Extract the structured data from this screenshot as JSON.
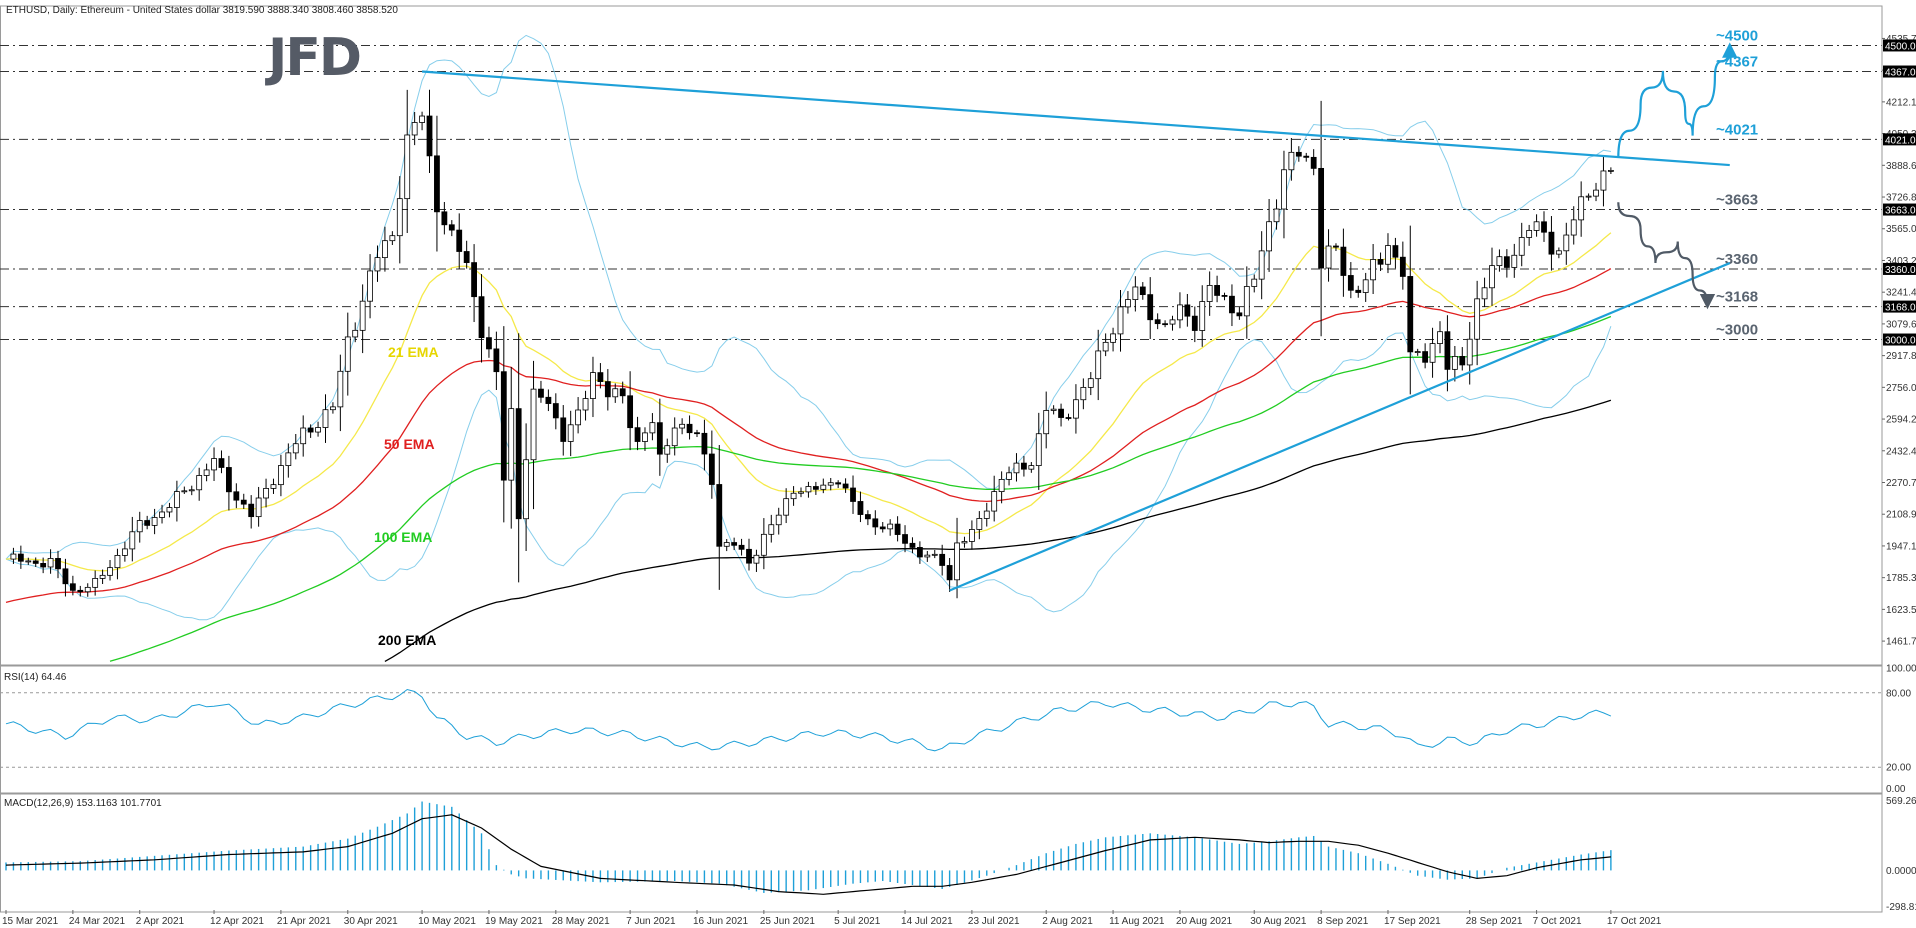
{
  "chart_data": {
    "type": "candlestick",
    "header": "ETHUSD, Daily:  Ethereum - United States dollar  3819.590 3888.340 3808.460 3858.520",
    "logo": "JFD",
    "y_axis": {
      "range": [
        1350,
        4640
      ],
      "tick_labels": [
        "4535.760",
        "4373.970",
        "4212.180",
        "4050.390",
        "3888.600",
        "3726.810",
        "3565.020",
        "3403.230",
        "3241.440",
        "3079.650",
        "2917.860",
        "2756.070",
        "2594.280",
        "2432.490",
        "2270.700",
        "2108.910",
        "1947.120",
        "1785.330",
        "1623.540",
        "1461.750"
      ]
    },
    "x_axis_labels": [
      {
        "label": "15 Mar 2021",
        "i": 0
      },
      {
        "label": "24 Mar 2021",
        "i": 9
      },
      {
        "label": "2 Apr 2021",
        "i": 18
      },
      {
        "label": "12 Apr 2021",
        "i": 28
      },
      {
        "label": "21 Apr 2021",
        "i": 37
      },
      {
        "label": "30 Apr 2021",
        "i": 46
      },
      {
        "label": "10 May 2021",
        "i": 56
      },
      {
        "label": "19 May 2021",
        "i": 65
      },
      {
        "label": "28 May 2021",
        "i": 74
      },
      {
        "label": "7 Jun 2021",
        "i": 84
      },
      {
        "label": "16 Jun 2021",
        "i": 93
      },
      {
        "label": "25 Jun 2021",
        "i": 102
      },
      {
        "label": "5 Jul 2021",
        "i": 112
      },
      {
        "label": "14 Jul 2021",
        "i": 121
      },
      {
        "label": "23 Jul 2021",
        "i": 130
      },
      {
        "label": "2 Aug 2021",
        "i": 140
      },
      {
        "label": "11 Aug 2021",
        "i": 149
      },
      {
        "label": "20 Aug 2021",
        "i": 158
      },
      {
        "label": "30 Aug 2021",
        "i": 168
      },
      {
        "label": "8 Sep 2021",
        "i": 177
      },
      {
        "label": "17 Sep 2021",
        "i": 186
      },
      {
        "label": "28 Sep 2021",
        "i": 197
      },
      {
        "label": "7 Oct 2021",
        "i": 206
      },
      {
        "label": "17 Oct 2021",
        "i": 216
      }
    ],
    "levels": [
      {
        "label": "~4500",
        "value": 4500,
        "box": "4500.000"
      },
      {
        "label": "~4367",
        "value": 4367,
        "box": "4367.000"
      },
      {
        "label": "~4021",
        "value": 4021,
        "box": "4021.000"
      },
      {
        "label": "~3663",
        "value": 3663,
        "box": "3663.000"
      },
      {
        "label": "~3360",
        "value": 3360,
        "box": "3360.000"
      },
      {
        "label": "~3168",
        "value": 3168,
        "box": "3168.000"
      },
      {
        "label": "~3000",
        "value": 3000,
        "box": "3000.000"
      }
    ],
    "ema_labels": [
      "21 EMA",
      "50 EMA",
      "100 EMA",
      "200 EMA"
    ],
    "close_anchors": [
      [
        0,
        1880
      ],
      [
        6,
        1860
      ],
      [
        9,
        1720
      ],
      [
        12,
        1750
      ],
      [
        18,
        2050
      ],
      [
        22,
        2150
      ],
      [
        28,
        2380
      ],
      [
        30,
        2250
      ],
      [
        33,
        2100
      ],
      [
        36,
        2300
      ],
      [
        40,
        2520
      ],
      [
        44,
        2650
      ],
      [
        46,
        3000
      ],
      [
        48,
        3200
      ],
      [
        50,
        3420
      ],
      [
        52,
        3550
      ],
      [
        54,
        4000
      ],
      [
        56,
        4150
      ],
      [
        58,
        3700
      ],
      [
        60,
        3500
      ],
      [
        62,
        3400
      ],
      [
        64,
        3050
      ],
      [
        66,
        2800
      ],
      [
        67,
        2300
      ],
      [
        68,
        2650
      ],
      [
        69,
        2100
      ],
      [
        71,
        2700
      ],
      [
        73,
        2700
      ],
      [
        75,
        2500
      ],
      [
        77,
        2600
      ],
      [
        79,
        2850
      ],
      [
        81,
        2720
      ],
      [
        83,
        2700
      ],
      [
        85,
        2480
      ],
      [
        87,
        2570
      ],
      [
        88,
        2380
      ],
      [
        90,
        2580
      ],
      [
        93,
        2500
      ],
      [
        95,
        2300
      ],
      [
        96,
        1950
      ],
      [
        98,
        1950
      ],
      [
        100,
        1870
      ],
      [
        102,
        1990
      ],
      [
        104,
        2100
      ],
      [
        106,
        2250
      ],
      [
        108,
        2220
      ],
      [
        110,
        2250
      ],
      [
        112,
        2300
      ],
      [
        114,
        2150
      ],
      [
        116,
        2080
      ],
      [
        118,
        2050
      ],
      [
        120,
        2000
      ],
      [
        122,
        1940
      ],
      [
        124,
        1890
      ],
      [
        126,
        1860
      ],
      [
        127,
        1780
      ],
      [
        128,
        1970
      ],
      [
        130,
        2000
      ],
      [
        132,
        2150
      ],
      [
        134,
        2300
      ],
      [
        136,
        2330
      ],
      [
        138,
        2380
      ],
      [
        140,
        2650
      ],
      [
        142,
        2580
      ],
      [
        144,
        2700
      ],
      [
        146,
        2800
      ],
      [
        148,
        3000
      ],
      [
        150,
        3150
      ],
      [
        152,
        3250
      ],
      [
        154,
        3150
      ],
      [
        156,
        3050
      ],
      [
        158,
        3150
      ],
      [
        160,
        3100
      ],
      [
        162,
        3250
      ],
      [
        164,
        3200
      ],
      [
        166,
        3150
      ],
      [
        168,
        3300
      ],
      [
        170,
        3600
      ],
      [
        172,
        3850
      ],
      [
        174,
        3950
      ],
      [
        176,
        3900
      ],
      [
        177,
        3400
      ],
      [
        179,
        3450
      ],
      [
        181,
        3250
      ],
      [
        183,
        3300
      ],
      [
        185,
        3400
      ],
      [
        186,
        3500
      ],
      [
        188,
        3350
      ],
      [
        189,
        2900
      ],
      [
        191,
        2920
      ],
      [
        193,
        3050
      ],
      [
        194,
        2850
      ],
      [
        196,
        2880
      ],
      [
        198,
        3200
      ],
      [
        200,
        3350
      ],
      [
        203,
        3450
      ],
      [
        205,
        3560
      ],
      [
        207,
        3550
      ],
      [
        209,
        3440
      ],
      [
        211,
        3600
      ],
      [
        213,
        3780
      ],
      [
        215,
        3820
      ],
      [
        216,
        3858
      ]
    ],
    "trendline_down": {
      "from": [
        56,
        4367
      ],
      "to": [
        232,
        3890
      ]
    },
    "trendline_up": {
      "from": [
        127,
        1720
      ],
      "to": [
        232,
        3390
      ]
    },
    "scenario_up": {
      "start": [
        217,
        3930
      ],
      "points": [
        [
          220,
          4200
        ],
        [
          223,
          4370
        ],
        [
          226,
          4160
        ],
        [
          227,
          4040
        ],
        [
          230,
          4340
        ],
        [
          232,
          4500
        ]
      ]
    },
    "scenario_down": {
      "start": [
        217,
        3700
      ],
      "points": [
        [
          220,
          3560
        ],
        [
          222,
          3390
        ],
        [
          225,
          3500
        ],
        [
          227,
          3330
        ],
        [
          229,
          3170
        ]
      ]
    },
    "rsi": {
      "header": "RSI(14) 64.46",
      "range": [
        0,
        100
      ],
      "levels": [
        80,
        20
      ],
      "tick_labels": [
        "100.00",
        "80.00",
        "20.00",
        "0.00"
      ],
      "anchors": [
        [
          0,
          55
        ],
        [
          8,
          45
        ],
        [
          14,
          60
        ],
        [
          20,
          58
        ],
        [
          28,
          72
        ],
        [
          30,
          68
        ],
        [
          34,
          54
        ],
        [
          40,
          60
        ],
        [
          46,
          70
        ],
        [
          50,
          75
        ],
        [
          54,
          80
        ],
        [
          56,
          78
        ],
        [
          58,
          60
        ],
        [
          62,
          45
        ],
        [
          66,
          40
        ],
        [
          70,
          45
        ],
        [
          76,
          50
        ],
        [
          82,
          48
        ],
        [
          88,
          42
        ],
        [
          94,
          36
        ],
        [
          98,
          38
        ],
        [
          104,
          43
        ],
        [
          110,
          48
        ],
        [
          116,
          46
        ],
        [
          122,
          40
        ],
        [
          126,
          34
        ],
        [
          130,
          44
        ],
        [
          136,
          56
        ],
        [
          142,
          66
        ],
        [
          148,
          72
        ],
        [
          152,
          68
        ],
        [
          158,
          64
        ],
        [
          164,
          60
        ],
        [
          170,
          70
        ],
        [
          174,
          72
        ],
        [
          176,
          68
        ],
        [
          178,
          55
        ],
        [
          184,
          52
        ],
        [
          188,
          46
        ],
        [
          190,
          36
        ],
        [
          194,
          42
        ],
        [
          198,
          40
        ],
        [
          202,
          50
        ],
        [
          206,
          54
        ],
        [
          212,
          62
        ],
        [
          216,
          64
        ]
      ]
    },
    "macd": {
      "header": "MACD(12,26,9) 153.1163 101.7701",
      "range": [
        -298.8128,
        569.2667
      ],
      "tick_labels": [
        "569.2667",
        "0.0000",
        "-298.8128"
      ],
      "hist_anchors": [
        [
          0,
          60
        ],
        [
          10,
          70
        ],
        [
          20,
          110
        ],
        [
          30,
          150
        ],
        [
          40,
          180
        ],
        [
          46,
          240
        ],
        [
          50,
          330
        ],
        [
          54,
          430
        ],
        [
          56,
          520
        ],
        [
          60,
          480
        ],
        [
          64,
          280
        ],
        [
          66,
          40
        ],
        [
          68,
          -30
        ],
        [
          70,
          -60
        ],
        [
          80,
          -90
        ],
        [
          90,
          -80
        ],
        [
          96,
          -100
        ],
        [
          102,
          -170
        ],
        [
          108,
          -150
        ],
        [
          114,
          -100
        ],
        [
          118,
          -80
        ],
        [
          122,
          -110
        ],
        [
          126,
          -140
        ],
        [
          128,
          -110
        ],
        [
          132,
          -40
        ],
        [
          136,
          40
        ],
        [
          140,
          130
        ],
        [
          144,
          200
        ],
        [
          148,
          250
        ],
        [
          154,
          280
        ],
        [
          160,
          250
        ],
        [
          166,
          200
        ],
        [
          170,
          220
        ],
        [
          174,
          250
        ],
        [
          176,
          260
        ],
        [
          178,
          180
        ],
        [
          182,
          130
        ],
        [
          186,
          50
        ],
        [
          190,
          -40
        ],
        [
          194,
          -70
        ],
        [
          198,
          -60
        ],
        [
          202,
          20
        ],
        [
          206,
          60
        ],
        [
          212,
          120
        ],
        [
          216,
          153
        ]
      ],
      "signal_anchors": [
        [
          0,
          40
        ],
        [
          10,
          55
        ],
        [
          20,
          80
        ],
        [
          30,
          120
        ],
        [
          40,
          140
        ],
        [
          46,
          180
        ],
        [
          52,
          280
        ],
        [
          56,
          390
        ],
        [
          60,
          420
        ],
        [
          64,
          320
        ],
        [
          68,
          160
        ],
        [
          72,
          30
        ],
        [
          80,
          -60
        ],
        [
          90,
          -90
        ],
        [
          98,
          -110
        ],
        [
          104,
          -160
        ],
        [
          110,
          -180
        ],
        [
          116,
          -150
        ],
        [
          122,
          -120
        ],
        [
          126,
          -120
        ],
        [
          130,
          -90
        ],
        [
          136,
          -30
        ],
        [
          142,
          60
        ],
        [
          148,
          150
        ],
        [
          154,
          230
        ],
        [
          160,
          250
        ],
        [
          166,
          230
        ],
        [
          170,
          210
        ],
        [
          174,
          220
        ],
        [
          178,
          220
        ],
        [
          182,
          190
        ],
        [
          186,
          130
        ],
        [
          190,
          60
        ],
        [
          194,
          -10
        ],
        [
          198,
          -60
        ],
        [
          202,
          -40
        ],
        [
          206,
          20
        ],
        [
          212,
          80
        ],
        [
          216,
          102
        ]
      ]
    }
  }
}
